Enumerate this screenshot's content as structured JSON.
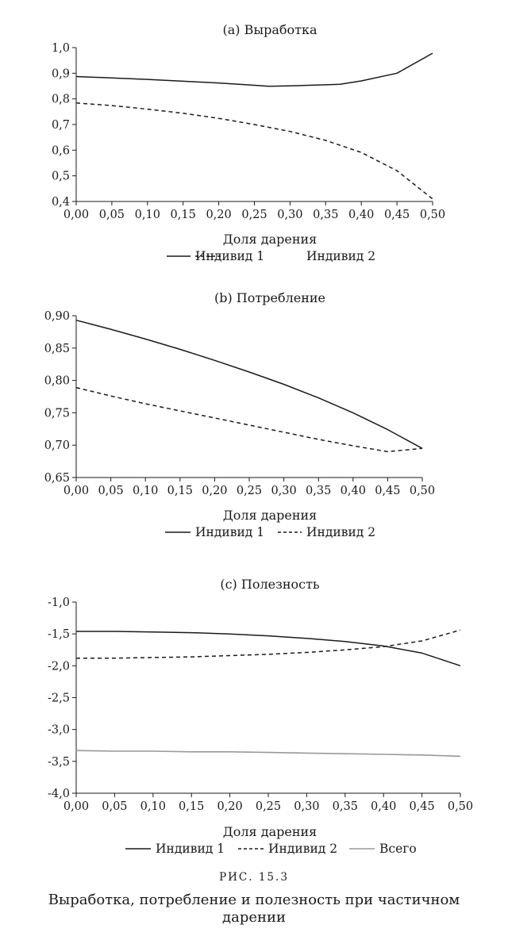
{
  "legend": {
    "ind1": "Индивид 1",
    "ind2": "Индивид 2",
    "total": "Всего"
  },
  "caption": {
    "label": "РИС. 15.3",
    "text": "Выработка, потребление и полезность при частичном дарении"
  },
  "colors": {
    "ind1": "#1a1a1a",
    "ind2": "#1a1a1a",
    "total": "#999999"
  },
  "chart_data": [
    {
      "type": "line",
      "title": "(a) Выработка",
      "xlabel": "Доля дарения",
      "ylabel": "",
      "xlim": [
        0,
        0.5
      ],
      "ylim": [
        0.4,
        1.0
      ],
      "x_ticks": [
        "0,00",
        "0,05",
        "0,10",
        "0,15",
        "0,20",
        "0,25",
        "0,30",
        "0,35",
        "0,40",
        "0,45",
        "0,50"
      ],
      "y_ticks": [
        "0,4",
        "0,5",
        "0,6",
        "0,7",
        "0,8",
        "0,9",
        "1,0"
      ],
      "legend_position": "bottom",
      "series": [
        {
          "name": "Индивид 1",
          "style": "solid",
          "x": [
            0.0,
            0.05,
            0.1,
            0.15,
            0.2,
            0.25,
            0.27,
            0.3,
            0.35,
            0.37,
            0.4,
            0.45,
            0.5
          ],
          "y": [
            0.887,
            0.882,
            0.876,
            0.869,
            0.862,
            0.853,
            0.849,
            0.851,
            0.855,
            0.857,
            0.87,
            0.9,
            0.978
          ]
        },
        {
          "name": "Индивид 2",
          "style": "dashed",
          "x": [
            0.0,
            0.05,
            0.1,
            0.15,
            0.2,
            0.25,
            0.3,
            0.35,
            0.4,
            0.45,
            0.5
          ],
          "y": [
            0.784,
            0.774,
            0.76,
            0.744,
            0.724,
            0.7,
            0.673,
            0.638,
            0.591,
            0.52,
            0.41
          ]
        }
      ]
    },
    {
      "type": "line",
      "title": "(b) Потребление",
      "xlabel": "Доля дарения",
      "ylabel": "",
      "xlim": [
        0,
        0.5
      ],
      "ylim": [
        0.65,
        0.9
      ],
      "x_ticks": [
        "0,00",
        "0,05",
        "0,10",
        "0,15",
        "0,20",
        "0,25",
        "0,30",
        "0,35",
        "0,40",
        "0,45",
        "0,50"
      ],
      "y_ticks": [
        "0,65",
        "0,70",
        "0,75",
        "0,80",
        "0,85",
        "0,90"
      ],
      "legend_position": "bottom",
      "series": [
        {
          "name": "Индивид 1",
          "style": "solid",
          "x": [
            0.0,
            0.05,
            0.1,
            0.15,
            0.2,
            0.25,
            0.3,
            0.35,
            0.4,
            0.45,
            0.5
          ],
          "y": [
            0.893,
            0.879,
            0.864,
            0.848,
            0.831,
            0.813,
            0.794,
            0.773,
            0.75,
            0.724,
            0.695
          ]
        },
        {
          "name": "Индивид 2",
          "style": "dashed",
          "x": [
            0.0,
            0.05,
            0.1,
            0.15,
            0.2,
            0.25,
            0.3,
            0.35,
            0.4,
            0.45,
            0.5
          ],
          "y": [
            0.789,
            0.776,
            0.764,
            0.753,
            0.742,
            0.731,
            0.72,
            0.709,
            0.699,
            0.69,
            0.695
          ]
        }
      ]
    },
    {
      "type": "line",
      "title": "(c) Полезность",
      "xlabel": "Доля дарения",
      "ylabel": "",
      "xlim": [
        0,
        0.5
      ],
      "ylim": [
        -4.0,
        -1.0
      ],
      "x_ticks": [
        "0,00",
        "0,05",
        "0,10",
        "0,15",
        "0,20",
        "0,25",
        "0,30",
        "0,35",
        "0,40",
        "0,45",
        "0,50"
      ],
      "y_ticks": [
        "-4,0",
        "-3,5",
        "-3,0",
        "-2,5",
        "-2,0",
        "-1,5",
        "-1,0"
      ],
      "legend_position": "bottom",
      "series": [
        {
          "name": "Индивид 1",
          "style": "solid",
          "x": [
            0.0,
            0.05,
            0.1,
            0.15,
            0.2,
            0.25,
            0.3,
            0.35,
            0.4,
            0.45,
            0.5
          ],
          "y": [
            -1.46,
            -1.46,
            -1.47,
            -1.48,
            -1.5,
            -1.53,
            -1.57,
            -1.62,
            -1.69,
            -1.8,
            -2.0
          ]
        },
        {
          "name": "Индивид 2",
          "style": "dashed",
          "x": [
            0.0,
            0.05,
            0.1,
            0.15,
            0.2,
            0.25,
            0.3,
            0.35,
            0.4,
            0.45,
            0.5
          ],
          "y": [
            -1.88,
            -1.88,
            -1.87,
            -1.86,
            -1.84,
            -1.82,
            -1.79,
            -1.75,
            -1.7,
            -1.61,
            -1.44
          ]
        },
        {
          "name": "Всего",
          "style": "gray",
          "x": [
            0.0,
            0.05,
            0.1,
            0.15,
            0.2,
            0.25,
            0.3,
            0.35,
            0.4,
            0.45,
            0.5
          ],
          "y": [
            -3.33,
            -3.34,
            -3.34,
            -3.35,
            -3.35,
            -3.36,
            -3.37,
            -3.38,
            -3.39,
            -3.4,
            -3.42
          ]
        }
      ]
    }
  ]
}
